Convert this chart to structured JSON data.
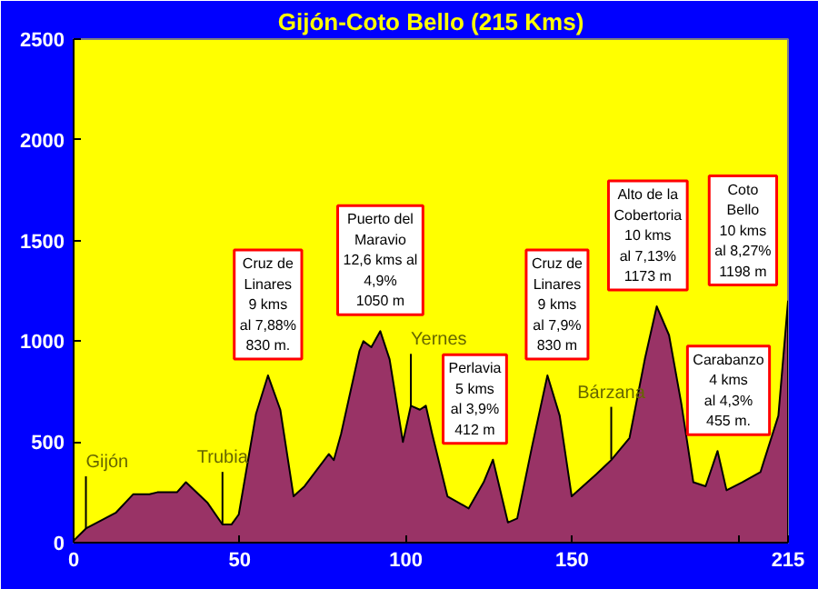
{
  "chart_data": {
    "type": "area",
    "title": "Gijón-Coto Bello (215 Kms)",
    "x": [
      0,
      3.7,
      12.8,
      17.9,
      22.8,
      25.2,
      31.1,
      33.8,
      40.2,
      44.8,
      47.5,
      49.7,
      54.9,
      58.5,
      62.2,
      66.2,
      69.5,
      76.8,
      78.3,
      80.5,
      86,
      87.2,
      89.6,
      92.3,
      95.1,
      99.1,
      101.5,
      104.2,
      106,
      107.9,
      112.5,
      118.9,
      123.4,
      126.2,
      130.7,
      133.5,
      138,
      142.6,
      146.3,
      149.9,
      157.3,
      161.8,
      167.3,
      171.9,
      175.5,
      179.2,
      182.9,
      186.5,
      190.2,
      193.8,
      196.5,
      201.2,
      206.7,
      212.1,
      215
    ],
    "series": [
      {
        "color": "#993366",
        "values": [
          10,
          70,
          150,
          240,
          240,
          250,
          250,
          300,
          200,
          90,
          90,
          140,
          640,
          830,
          660,
          230,
          280,
          440,
          410,
          540,
          950,
          1000,
          970,
          1050,
          910,
          500,
          680,
          660,
          680,
          540,
          230,
          170,
          300,
          412,
          100,
          120,
          480,
          830,
          630,
          230,
          340,
          410,
          520,
          910,
          1173,
          1030,
          690,
          300,
          280,
          455,
          260,
          300,
          350,
          630,
          1198
        ]
      }
    ],
    "xlim": [
      0,
      215
    ],
    "ylim": [
      0,
      2500
    ],
    "xticks": [
      0,
      50,
      100,
      150,
      {
        "value": 200,
        "label": null
      },
      215
    ],
    "yticks": [
      0,
      500,
      1000,
      1500,
      2000,
      2500
    ],
    "grid": false,
    "annotations": [
      {
        "text": "Gijón",
        "x": 3.7,
        "y": 68
      },
      {
        "text": "Trubia",
        "x": 44.8,
        "y": 90
      },
      {
        "text": "Cruz de\nLinares\n9 kms\nal 7,88%\n830 m.",
        "x": 58.5,
        "y": 830
      },
      {
        "text": "Puerto del\nMaravio\n12,6 kms al\n4,9%\n1050 m",
        "x": 92.3,
        "y": 1050
      },
      {
        "text": "Yernes",
        "x": 101.5,
        "y": 676
      },
      {
        "text": "Perlavia\n5 kms\nal 3,9%\n412 m",
        "x": 126.2,
        "y": 412
      },
      {
        "text": "Cruz de\nLinares\n9 kms\nal 7,9%\n830 m",
        "x": 142.6,
        "y": 830
      },
      {
        "text": "Bárzana",
        "x": 161.8,
        "y": 413
      },
      {
        "text": "Alto de la\nCobertoria\n10 kms\nal 7,13%\n1173 m",
        "x": 175.5,
        "y": 1173
      },
      {
        "text": "Carabanzo\n4 kms\nal 4,3%\n455 m.",
        "x": 193.8,
        "y": 455
      },
      {
        "text": "Coto\nBello\n10 kms\nal 8,27%\n1198 m",
        "x": 215,
        "y": 1198
      }
    ]
  }
}
